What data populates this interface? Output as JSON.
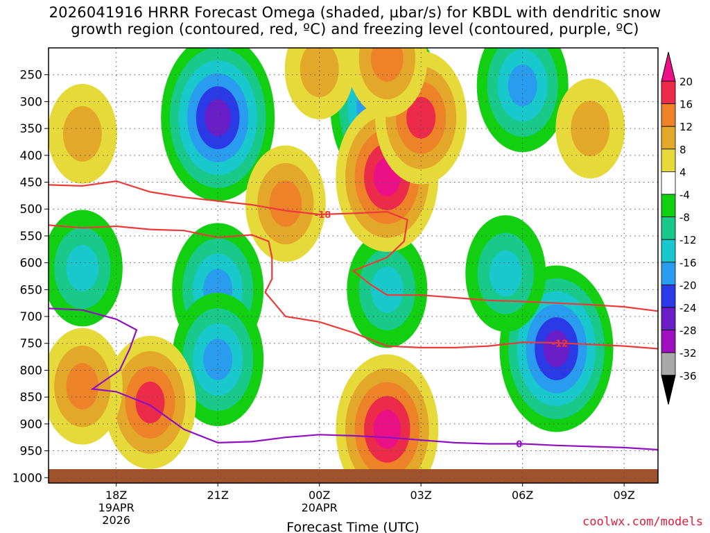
{
  "chart_data": {
    "type": "heatmap",
    "title_line1": "2026041916 HRRR Forecast Omega (shaded, µbar/s) for KBDL with dendritic snow",
    "title_line2": "growth region (contoured, red, ºC) and freezing level (contoured, purple, ºC)",
    "xlabel": "Forecast Time (UTC)",
    "ylabel": "Pressure (hPa)",
    "credit": "coolwx.com/models",
    "x_range_hours": [
      -2.0,
      16.0
    ],
    "y_range_hpa": [
      200,
      1010
    ],
    "y_ticks": [
      250,
      300,
      350,
      400,
      450,
      500,
      550,
      600,
      650,
      700,
      750,
      800,
      850,
      900,
      950,
      1000
    ],
    "y_tick_labels": [
      "250",
      "300",
      "350",
      "400",
      "450",
      "500",
      "550",
      "600",
      "650",
      "700",
      "750",
      "800",
      "850",
      "900",
      "950",
      "1000"
    ],
    "x_ticks": [
      {
        "hour": 0,
        "label": "18Z",
        "sub1": "19APR",
        "sub2": "2026"
      },
      {
        "hour": 3,
        "label": "21Z",
        "sub1": "",
        "sub2": ""
      },
      {
        "hour": 6,
        "label": "00Z",
        "sub1": "20APR",
        "sub2": ""
      },
      {
        "hour": 9,
        "label": "03Z",
        "sub1": "",
        "sub2": ""
      },
      {
        "hour": 12,
        "label": "06Z",
        "sub1": "",
        "sub2": ""
      },
      {
        "hour": 15,
        "label": "09Z",
        "sub1": "",
        "sub2": ""
      }
    ],
    "colorbar": {
      "labels": [
        "20",
        "16",
        "12",
        "8",
        "4",
        "-4",
        "-8",
        "-12",
        "-16",
        "-20",
        "-24",
        "-28",
        "-32",
        "-36"
      ],
      "bins": [
        {
          "lo": 16,
          "hi": 20,
          "color": "#ec2a4a"
        },
        {
          "lo": 12,
          "hi": 16,
          "color": "#ee8229"
        },
        {
          "lo": 8,
          "hi": 12,
          "color": "#e3a82a"
        },
        {
          "lo": 4,
          "hi": 8,
          "color": "#e6da3a"
        },
        {
          "lo": -4,
          "hi": 4,
          "color": "#ffffff"
        },
        {
          "lo": -8,
          "hi": -4,
          "color": "#12cf12"
        },
        {
          "lo": -12,
          "hi": -8,
          "color": "#18c98a"
        },
        {
          "lo": -16,
          "hi": -12,
          "color": "#18c8cc"
        },
        {
          "lo": -20,
          "hi": -16,
          "color": "#2a9cf0"
        },
        {
          "lo": -24,
          "hi": -20,
          "color": "#2a3ae6"
        },
        {
          "lo": -28,
          "hi": -24,
          "color": "#6a1ec8"
        },
        {
          "lo": -32,
          "hi": -28,
          "color": "#a010c0"
        },
        {
          "lo": -36,
          "hi": -32,
          "color": "#a9a9a9"
        }
      ],
      "top_arrow_color": "#ec1086",
      "bottom_arrow_color": "#000000"
    },
    "omega_features": [
      {
        "hour": 3.0,
        "p": 330,
        "peak": -24
      },
      {
        "hour": 3.0,
        "p": 650,
        "peak": -16
      },
      {
        "hour": 3.0,
        "p": 780,
        "peak": -16
      },
      {
        "hour": -1.0,
        "p": 610,
        "peak": -12
      },
      {
        "hour": 8.0,
        "p": 310,
        "peak": -24
      },
      {
        "hour": 8.0,
        "p": 650,
        "peak": -12
      },
      {
        "hour": 12.0,
        "p": 270,
        "peak": -16
      },
      {
        "hour": 13.0,
        "p": 760,
        "peak": -24
      },
      {
        "hour": 11.5,
        "p": 620,
        "peak": -12
      },
      {
        "hour": 8.0,
        "p": 440,
        "peak": 20
      },
      {
        "hour": 8.0,
        "p": 910,
        "peak": 20
      },
      {
        "hour": 9.0,
        "p": 330,
        "peak": 16
      },
      {
        "hour": 8.0,
        "p": 220,
        "peak": 12
      },
      {
        "hour": 5.0,
        "p": 490,
        "peak": 12
      },
      {
        "hour": 1.0,
        "p": 860,
        "peak": 16
      },
      {
        "hour": -1.0,
        "p": 830,
        "peak": 12
      },
      {
        "hour": -1.0,
        "p": 360,
        "peak": 8
      },
      {
        "hour": 14.0,
        "p": 350,
        "peak": 8
      },
      {
        "hour": 6.0,
        "p": 240,
        "peak": 8
      }
    ],
    "contours": [
      {
        "name": "dgz",
        "label": "-18",
        "label_hour": 6.1,
        "label_p": 510,
        "color": "#ec3a3a",
        "points": [
          [
            -2.0,
            455
          ],
          [
            -1.0,
            457
          ],
          [
            0.0,
            448
          ],
          [
            1.0,
            468
          ],
          [
            2.0,
            478
          ],
          [
            3.0,
            485
          ],
          [
            4.0,
            492
          ],
          [
            5.0,
            503
          ],
          [
            6.0,
            510
          ],
          [
            7.0,
            508
          ],
          [
            8.0,
            505
          ],
          [
            8.6,
            520
          ],
          [
            8.5,
            560
          ],
          [
            8.0,
            590
          ],
          [
            7.0,
            615
          ],
          [
            7.5,
            640
          ],
          [
            8.0,
            660
          ],
          [
            9.0,
            660
          ],
          [
            10.0,
            665
          ],
          [
            11.0,
            670
          ],
          [
            12.0,
            672
          ],
          [
            13.0,
            675
          ],
          [
            14.0,
            678
          ],
          [
            15.0,
            682
          ],
          [
            16.0,
            690
          ]
        ]
      },
      {
        "name": "dgz",
        "label": "-12",
        "label_hour": 13.1,
        "label_p": 750,
        "color": "#ec3a3a",
        "points": [
          [
            -2.0,
            530
          ],
          [
            -1.0,
            535
          ],
          [
            0.0,
            532
          ],
          [
            1.0,
            538
          ],
          [
            2.0,
            540
          ],
          [
            3.0,
            553
          ],
          [
            4.0,
            548
          ],
          [
            4.5,
            560
          ],
          [
            4.6,
            590
          ],
          [
            4.6,
            630
          ],
          [
            4.4,
            655
          ],
          [
            5.0,
            700
          ],
          [
            6.0,
            710
          ],
          [
            7.0,
            730
          ],
          [
            8.0,
            755
          ],
          [
            9.0,
            758
          ],
          [
            10.0,
            758
          ],
          [
            11.0,
            755
          ],
          [
            12.0,
            748
          ],
          [
            13.0,
            749
          ],
          [
            14.0,
            752
          ],
          [
            15.0,
            755
          ],
          [
            16.0,
            760
          ]
        ]
      },
      {
        "name": "freezing",
        "label": "0",
        "label_hour": 11.9,
        "label_p": 937,
        "color": "#8e10c0",
        "points": [
          [
            -2.0,
            685
          ],
          [
            -1.0,
            688
          ],
          [
            0.0,
            705
          ],
          [
            0.6,
            725
          ],
          [
            0.4,
            760
          ],
          [
            0.1,
            800
          ],
          [
            -0.7,
            835
          ],
          [
            0.0,
            840
          ],
          [
            1.0,
            865
          ],
          [
            2.0,
            910
          ],
          [
            3.0,
            935
          ],
          [
            4.0,
            933
          ],
          [
            5.0,
            925
          ],
          [
            6.0,
            920
          ],
          [
            7.0,
            922
          ],
          [
            8.0,
            925
          ],
          [
            9.0,
            930
          ],
          [
            10.0,
            935
          ],
          [
            11.0,
            937
          ],
          [
            12.0,
            937
          ],
          [
            13.0,
            940
          ],
          [
            14.0,
            942
          ],
          [
            15.0,
            944
          ],
          [
            16.0,
            948
          ]
        ]
      }
    ]
  }
}
